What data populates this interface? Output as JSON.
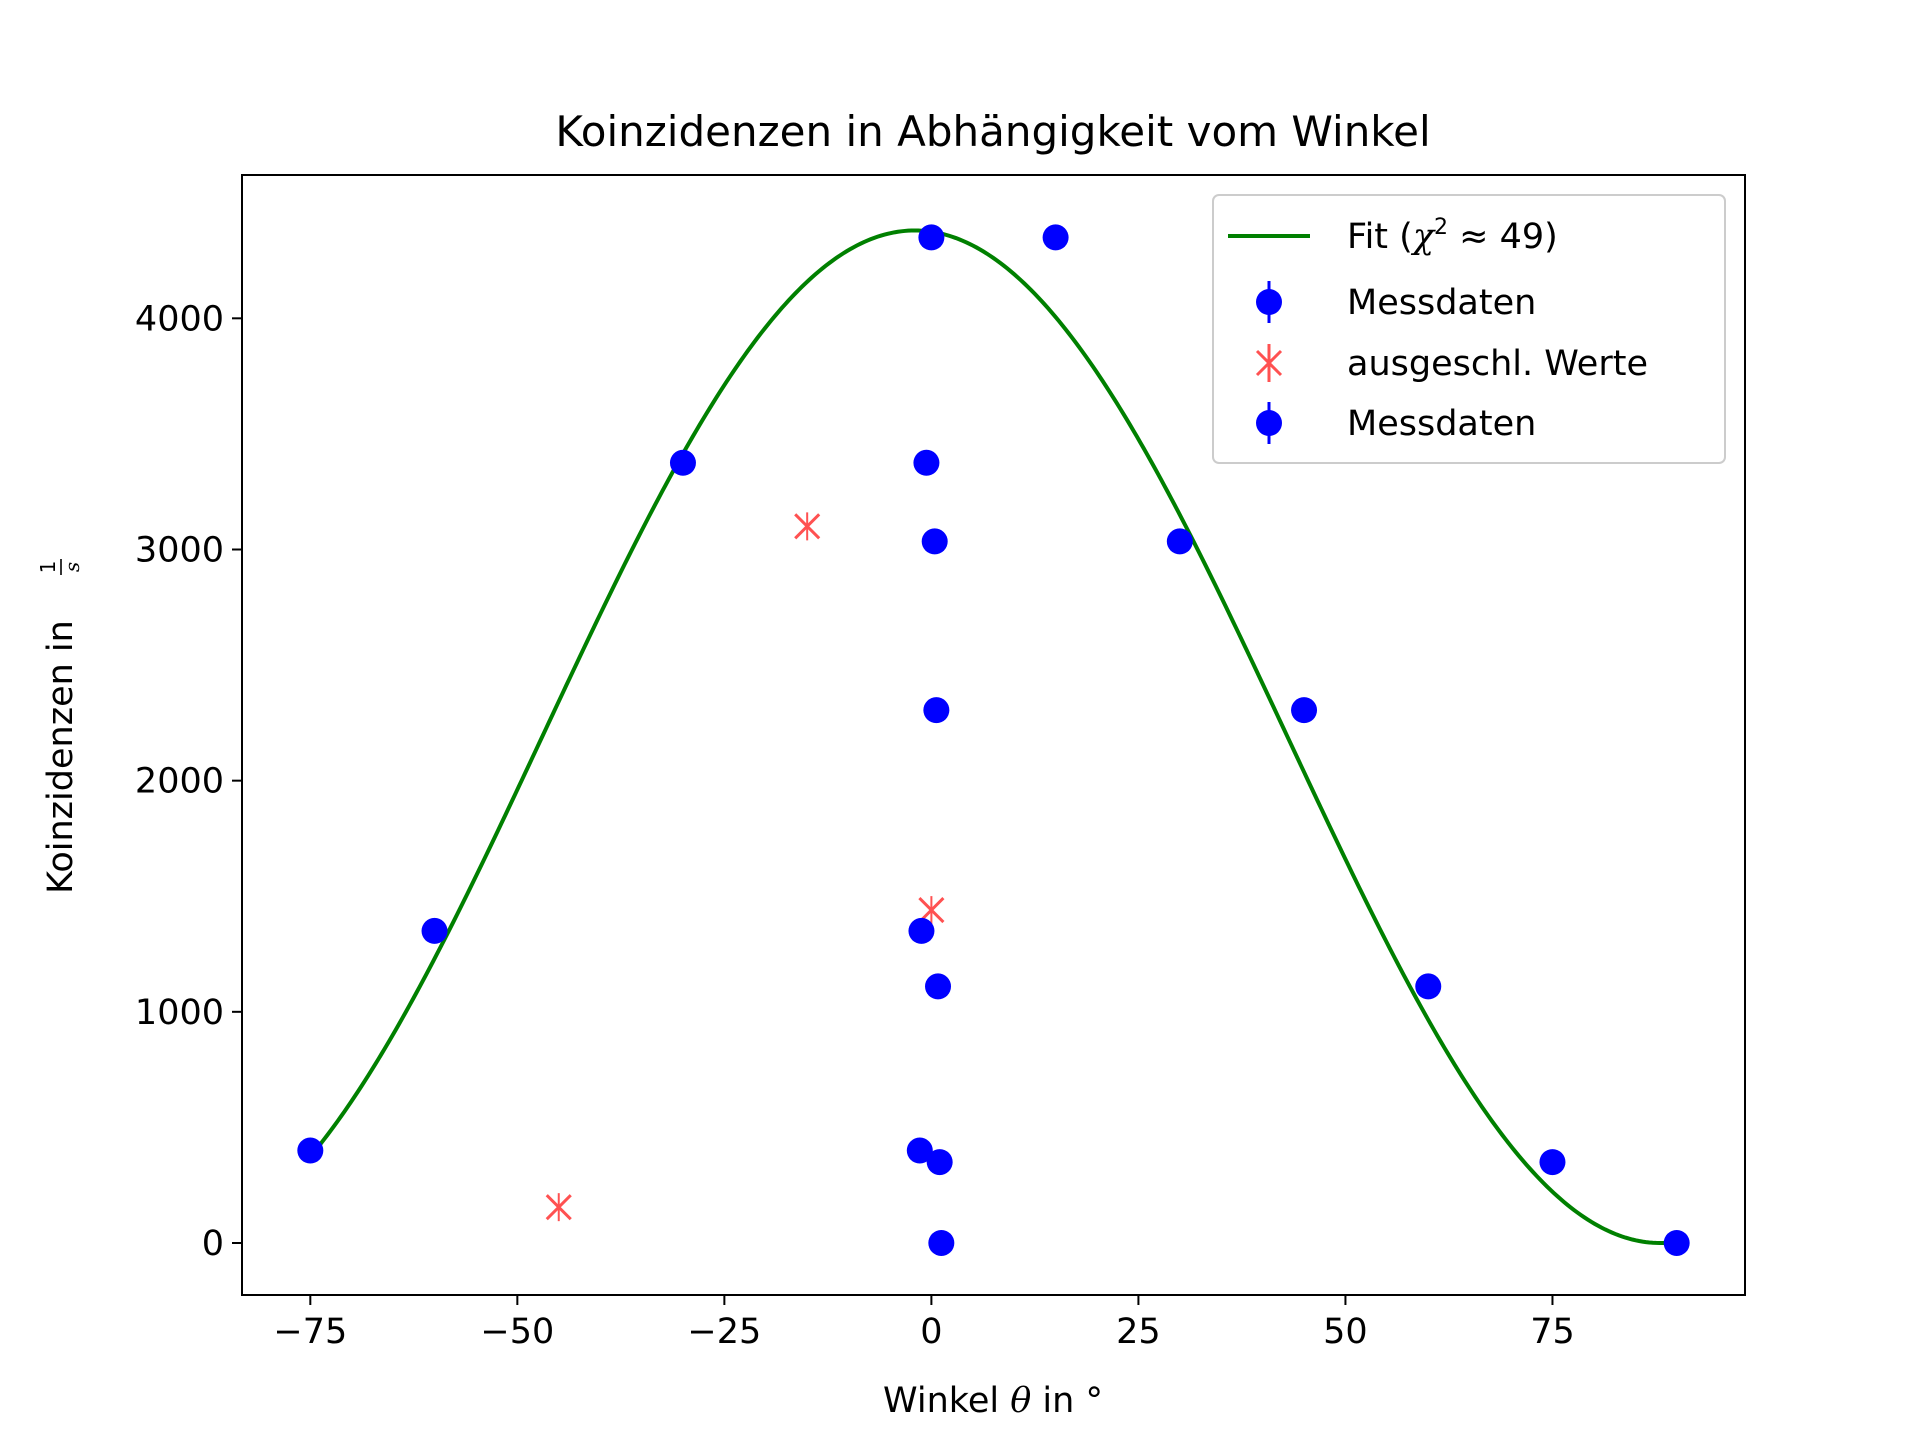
{
  "chart_data": {
    "type": "scatter",
    "title": "Koinzidenzen in Abhängigkeit vom Winkel",
    "xlabel_main": "Winkel ",
    "xlabel_symbol": "θ",
    "xlabel_tail": " in °",
    "ylabel_main": "Koinzidenzen in ",
    "ylabel_frac_num": "1",
    "ylabel_frac_den": "s",
    "xlim": [
      -83.25,
      98.25
    ],
    "ylim": [
      -225,
      4620
    ],
    "xticks": [
      -75,
      -50,
      -25,
      0,
      25,
      50,
      75
    ],
    "xtick_labels": [
      "−75",
      "−50",
      "−25",
      "0",
      "25",
      "50",
      "75"
    ],
    "yticks": [
      0,
      1000,
      2000,
      3000,
      4000
    ],
    "ytick_labels": [
      "0",
      "1000",
      "2000",
      "3000",
      "4000"
    ],
    "grid": false,
    "legend_placement": "upper right",
    "fit": {
      "label_prefix": "Fit (",
      "label_chi": "χ",
      "label_sup": "2",
      "label_suffix": " ≈ 49)",
      "amplitude": 4380,
      "phase_deg": -2,
      "x_range": [
        -75,
        90
      ],
      "color": "#008000"
    },
    "series": [
      {
        "name": "Messdaten",
        "color": "#0000ff",
        "marker": "circle",
        "points": [
          {
            "x": -75,
            "y": 400
          },
          {
            "x": -60,
            "y": 1350
          },
          {
            "x": -30,
            "y": 3375
          },
          {
            "x": 0,
            "y": 4350
          },
          {
            "x": 15,
            "y": 4350
          },
          {
            "x": 30,
            "y": 3035
          },
          {
            "x": 45,
            "y": 2305
          },
          {
            "x": 60,
            "y": 1110
          },
          {
            "x": 75,
            "y": 350
          },
          {
            "x": 90,
            "y": 0
          }
        ]
      },
      {
        "name": "ausgeschl. Werte",
        "color": "#ff3333",
        "marker": "x",
        "points": [
          {
            "x": -45,
            "y": 155
          },
          {
            "x": -15,
            "y": 3100
          },
          {
            "x": 0,
            "y": 1440
          }
        ]
      },
      {
        "name": "Messdaten",
        "color": "#0000ff",
        "marker": "circle",
        "points": [
          {
            "x": -0.6,
            "y": 3375
          },
          {
            "x": 0.4,
            "y": 3035
          },
          {
            "x": 0.6,
            "y": 2305
          },
          {
            "x": -1.2,
            "y": 1350
          },
          {
            "x": 0.8,
            "y": 1110
          },
          {
            "x": -1.4,
            "y": 400
          },
          {
            "x": 1.0,
            "y": 350
          },
          {
            "x": 1.2,
            "y": 0
          }
        ]
      }
    ]
  }
}
